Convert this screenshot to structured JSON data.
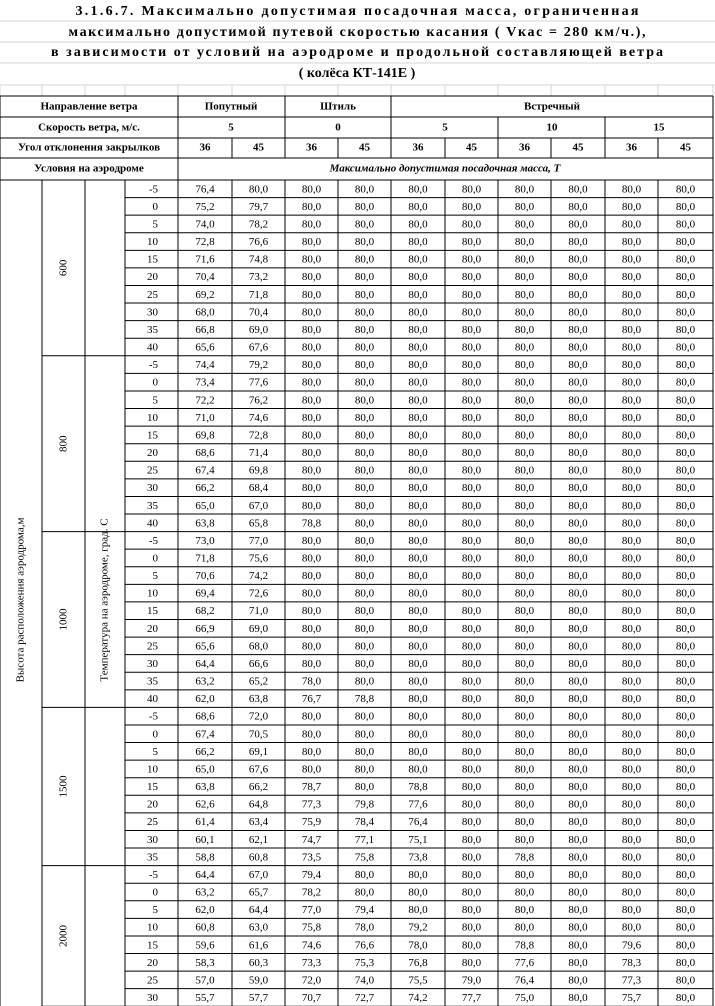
{
  "title": [
    "3.1.6.7. Максимально допустимая посадочная масса, ограниченная",
    "максимально допустимой путевой скоростью касания ( Vкас = 280 км/ч.),",
    "в зависимости от условий на аэродроме и продольной составляющей ветра",
    "( колёса КТ-141Е )"
  ],
  "header": {
    "direction": {
      "label": "Направление ветра",
      "groups": [
        "Попутный",
        "Штиль",
        "Встречный"
      ]
    },
    "speed": {
      "label": "Скорость ветра, м/с.",
      "values": [
        5,
        0,
        5,
        10,
        15
      ]
    },
    "flap": {
      "label": "Угол отклонения закрылков",
      "values": [
        36,
        45,
        36,
        45,
        36,
        45,
        36,
        45,
        36,
        45
      ]
    },
    "conditions": {
      "label": "Условия на аэродроме",
      "unit": "Максимально допустимая посадочная масса, Т"
    }
  },
  "side": {
    "height_label": "Высота расположения аэродрома,м",
    "temp_label": "Температура на аэродроме, град. С"
  },
  "blocks": [
    {
      "altitude": 600,
      "rows": [
        {
          "temp": -5,
          "values": [
            "76,4",
            "80,0",
            "80,0",
            "80,0",
            "80,0",
            "80,0",
            "80,0",
            "80,0",
            "80,0",
            "80,0"
          ]
        },
        {
          "temp": 0,
          "values": [
            "75,2",
            "79,7",
            "80,0",
            "80,0",
            "80,0",
            "80,0",
            "80,0",
            "80,0",
            "80,0",
            "80,0"
          ]
        },
        {
          "temp": 5,
          "values": [
            "74,0",
            "78,2",
            "80,0",
            "80,0",
            "80,0",
            "80,0",
            "80,0",
            "80,0",
            "80,0",
            "80,0"
          ]
        },
        {
          "temp": 10,
          "values": [
            "72,8",
            "76,6",
            "80,0",
            "80,0",
            "80,0",
            "80,0",
            "80,0",
            "80,0",
            "80,0",
            "80,0"
          ]
        },
        {
          "temp": 15,
          "values": [
            "71,6",
            "74,8",
            "80,0",
            "80,0",
            "80,0",
            "80,0",
            "80,0",
            "80,0",
            "80,0",
            "80,0"
          ]
        },
        {
          "temp": 20,
          "values": [
            "70,4",
            "73,2",
            "80,0",
            "80,0",
            "80,0",
            "80,0",
            "80,0",
            "80,0",
            "80,0",
            "80,0"
          ]
        },
        {
          "temp": 25,
          "values": [
            "69,2",
            "71,8",
            "80,0",
            "80,0",
            "80,0",
            "80,0",
            "80,0",
            "80,0",
            "80,0",
            "80,0"
          ]
        },
        {
          "temp": 30,
          "values": [
            "68,0",
            "70,4",
            "80,0",
            "80,0",
            "80,0",
            "80,0",
            "80,0",
            "80,0",
            "80,0",
            "80,0"
          ]
        },
        {
          "temp": 35,
          "values": [
            "66,8",
            "69,0",
            "80,0",
            "80,0",
            "80,0",
            "80,0",
            "80,0",
            "80,0",
            "80,0",
            "80,0"
          ]
        },
        {
          "temp": 40,
          "values": [
            "65,6",
            "67,6",
            "80,0",
            "80,0",
            "80,0",
            "80,0",
            "80,0",
            "80,0",
            "80,0",
            "80,0"
          ]
        }
      ]
    },
    {
      "altitude": 800,
      "rows": [
        {
          "temp": -5,
          "values": [
            "74,4",
            "79,2",
            "80,0",
            "80,0",
            "80,0",
            "80,0",
            "80,0",
            "80,0",
            "80,0",
            "80,0"
          ]
        },
        {
          "temp": 0,
          "values": [
            "73,4",
            "77,6",
            "80,0",
            "80,0",
            "80,0",
            "80,0",
            "80,0",
            "80,0",
            "80,0",
            "80,0"
          ]
        },
        {
          "temp": 5,
          "values": [
            "72,2",
            "76,2",
            "80,0",
            "80,0",
            "80,0",
            "80,0",
            "80,0",
            "80,0",
            "80,0",
            "80,0"
          ]
        },
        {
          "temp": 10,
          "values": [
            "71,0",
            "74,6",
            "80,0",
            "80,0",
            "80,0",
            "80,0",
            "80,0",
            "80,0",
            "80,0",
            "80,0"
          ]
        },
        {
          "temp": 15,
          "values": [
            "69,8",
            "72,8",
            "80,0",
            "80,0",
            "80,0",
            "80,0",
            "80,0",
            "80,0",
            "80,0",
            "80,0"
          ]
        },
        {
          "temp": 20,
          "values": [
            "68,6",
            "71,4",
            "80,0",
            "80,0",
            "80,0",
            "80,0",
            "80,0",
            "80,0",
            "80,0",
            "80,0"
          ]
        },
        {
          "temp": 25,
          "values": [
            "67,4",
            "69,8",
            "80,0",
            "80,0",
            "80,0",
            "80,0",
            "80,0",
            "80,0",
            "80,0",
            "80,0"
          ]
        },
        {
          "temp": 30,
          "values": [
            "66,2",
            "68,4",
            "80,0",
            "80,0",
            "80,0",
            "80,0",
            "80,0",
            "80,0",
            "80,0",
            "80,0"
          ]
        },
        {
          "temp": 35,
          "values": [
            "65,0",
            "67,0",
            "80,0",
            "80,0",
            "80,0",
            "80,0",
            "80,0",
            "80,0",
            "80,0",
            "80,0"
          ]
        },
        {
          "temp": 40,
          "values": [
            "63,8",
            "65,8",
            "78,8",
            "80,0",
            "80,0",
            "80,0",
            "80,0",
            "80,0",
            "80,0",
            "80,0"
          ]
        }
      ]
    },
    {
      "altitude": 1000,
      "rows": [
        {
          "temp": -5,
          "values": [
            "73,0",
            "77,0",
            "80,0",
            "80,0",
            "80,0",
            "80,0",
            "80,0",
            "80,0",
            "80,0",
            "80,0"
          ]
        },
        {
          "temp": 0,
          "values": [
            "71,8",
            "75,6",
            "80,0",
            "80,0",
            "80,0",
            "80,0",
            "80,0",
            "80,0",
            "80,0",
            "80,0"
          ]
        },
        {
          "temp": 5,
          "values": [
            "70,6",
            "74,2",
            "80,0",
            "80,0",
            "80,0",
            "80,0",
            "80,0",
            "80,0",
            "80,0",
            "80,0"
          ]
        },
        {
          "temp": 10,
          "values": [
            "69,4",
            "72,6",
            "80,0",
            "80,0",
            "80,0",
            "80,0",
            "80,0",
            "80,0",
            "80,0",
            "80,0"
          ]
        },
        {
          "temp": 15,
          "values": [
            "68,2",
            "71,0",
            "80,0",
            "80,0",
            "80,0",
            "80,0",
            "80,0",
            "80,0",
            "80,0",
            "80,0"
          ]
        },
        {
          "temp": 20,
          "values": [
            "66,9",
            "69,0",
            "80,0",
            "80,0",
            "80,0",
            "80,0",
            "80,0",
            "80,0",
            "80,0",
            "80,0"
          ]
        },
        {
          "temp": 25,
          "values": [
            "65,6",
            "68,0",
            "80,0",
            "80,0",
            "80,0",
            "80,0",
            "80,0",
            "80,0",
            "80,0",
            "80,0"
          ]
        },
        {
          "temp": 30,
          "values": [
            "64,4",
            "66,6",
            "80,0",
            "80,0",
            "80,0",
            "80,0",
            "80,0",
            "80,0",
            "80,0",
            "80,0"
          ]
        },
        {
          "temp": 35,
          "values": [
            "63,2",
            "65,2",
            "78,0",
            "80,0",
            "80,0",
            "80,0",
            "80,0",
            "80,0",
            "80,0",
            "80,0"
          ]
        },
        {
          "temp": 40,
          "values": [
            "62,0",
            "63,8",
            "76,7",
            "78,8",
            "80,0",
            "80,0",
            "80,0",
            "80,0",
            "80,0",
            "80,0"
          ]
        }
      ]
    },
    {
      "altitude": 1500,
      "rows": [
        {
          "temp": -5,
          "values": [
            "68,6",
            "72,0",
            "80,0",
            "80,0",
            "80,0",
            "80,0",
            "80,0",
            "80,0",
            "80,0",
            "80,0"
          ]
        },
        {
          "temp": 0,
          "values": [
            "67,4",
            "70,5",
            "80,0",
            "80,0",
            "80,0",
            "80,0",
            "80,0",
            "80,0",
            "80,0",
            "80,0"
          ]
        },
        {
          "temp": 5,
          "values": [
            "66,2",
            "69,1",
            "80,0",
            "80,0",
            "80,0",
            "80,0",
            "80,0",
            "80,0",
            "80,0",
            "80,0"
          ]
        },
        {
          "temp": 10,
          "values": [
            "65,0",
            "67,6",
            "80,0",
            "80,0",
            "80,0",
            "80,0",
            "80,0",
            "80,0",
            "80,0",
            "80,0"
          ]
        },
        {
          "temp": 15,
          "values": [
            "63,8",
            "66,2",
            "78,7",
            "80,0",
            "78,8",
            "80,0",
            "80,0",
            "80,0",
            "80,0",
            "80,0"
          ]
        },
        {
          "temp": 20,
          "values": [
            "62,6",
            "64,8",
            "77,3",
            "79,8",
            "77,6",
            "80,0",
            "80,0",
            "80,0",
            "80,0",
            "80,0"
          ]
        },
        {
          "temp": 25,
          "values": [
            "61,4",
            "63,4",
            "75,9",
            "78,4",
            "76,4",
            "80,0",
            "80,0",
            "80,0",
            "80,0",
            "80,0"
          ]
        },
        {
          "temp": 30,
          "values": [
            "60,1",
            "62,1",
            "74,7",
            "77,1",
            "75,1",
            "80,0",
            "80,0",
            "80,0",
            "80,0",
            "80,0"
          ]
        },
        {
          "temp": 35,
          "values": [
            "58,8",
            "60,8",
            "73,5",
            "75,8",
            "73,8",
            "80,0",
            "78,8",
            "80,0",
            "80,0",
            "80,0"
          ]
        }
      ]
    },
    {
      "altitude": 2000,
      "rows": [
        {
          "temp": -5,
          "values": [
            "64,4",
            "67,0",
            "79,4",
            "80,0",
            "80,0",
            "80,0",
            "80,0",
            "80,0",
            "80,0",
            "80,0"
          ]
        },
        {
          "temp": 0,
          "values": [
            "63,2",
            "65,7",
            "78,2",
            "80,0",
            "80,0",
            "80,0",
            "80,0",
            "80,0",
            "80,0",
            "80,0"
          ]
        },
        {
          "temp": 5,
          "values": [
            "62,0",
            "64,4",
            "77,0",
            "79,4",
            "80,0",
            "80,0",
            "80,0",
            "80,0",
            "80,0",
            "80,0"
          ]
        },
        {
          "temp": 10,
          "values": [
            "60,8",
            "63,0",
            "75,8",
            "78,0",
            "79,2",
            "80,0",
            "80,0",
            "80,0",
            "80,0",
            "80,0"
          ]
        },
        {
          "temp": 15,
          "values": [
            "59,6",
            "61,6",
            "74,6",
            "76,6",
            "78,0",
            "80,0",
            "78,8",
            "80,0",
            "79,6",
            "80,0"
          ]
        },
        {
          "temp": 20,
          "values": [
            "58,3",
            "60,3",
            "73,3",
            "75,3",
            "76,8",
            "80,0",
            "77,6",
            "80,0",
            "78,3",
            "80,0"
          ]
        },
        {
          "temp": 25,
          "values": [
            "57,0",
            "59,0",
            "72,0",
            "74,0",
            "75,5",
            "79,0",
            "76,4",
            "80,0",
            "77,3",
            "80,0"
          ]
        },
        {
          "temp": 30,
          "values": [
            "55,7",
            "57,7",
            "70,7",
            "72,7",
            "74,2",
            "77,7",
            "75,0",
            "80,0",
            "75,7",
            "80,0"
          ]
        }
      ]
    }
  ]
}
